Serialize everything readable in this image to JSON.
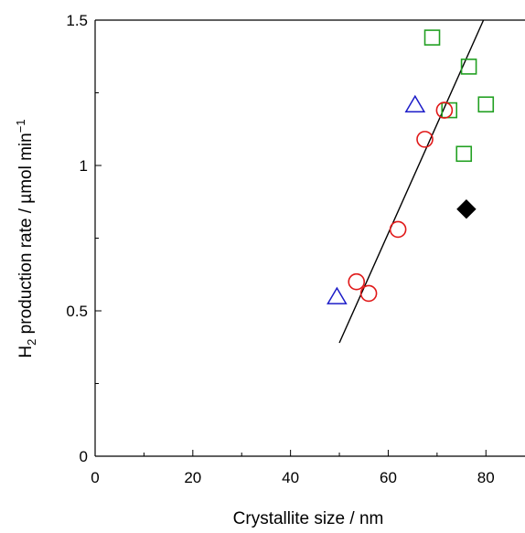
{
  "chart_data": {
    "type": "scatter",
    "title": "",
    "xlabel": "Crystallite size / nm",
    "ylabel": {
      "prefix": "H",
      "subscript": "2",
      "suffix": " production rate / µmol min",
      "superscript": "−1"
    },
    "xlim": [
      0,
      88
    ],
    "ylim": [
      0,
      1.5
    ],
    "x_ticks": [
      0,
      20,
      40,
      60,
      80
    ],
    "x_tick_labels": [
      "0",
      "20",
      "40",
      "60",
      "80"
    ],
    "x_minor_ticks": [
      10,
      30,
      50,
      70
    ],
    "y_ticks": [
      0,
      0.5,
      1,
      1.5
    ],
    "y_tick_labels": [
      "0",
      "0.5",
      "1",
      "1.5"
    ],
    "y_minor_ticks": [
      0.25,
      0.75,
      1.25
    ],
    "grid": false,
    "legend": null,
    "series": [
      {
        "marker": "square-open",
        "color": "#22a022",
        "points": [
          [
            69,
            1.44
          ],
          [
            76.5,
            1.34
          ],
          [
            72.5,
            1.19
          ],
          [
            80,
            1.21
          ],
          [
            75.5,
            1.04
          ]
        ]
      },
      {
        "marker": "triangle-open",
        "color": "#1c1cc8",
        "points": [
          [
            65.5,
            1.21
          ],
          [
            49.5,
            0.55
          ]
        ]
      },
      {
        "marker": "circle-open",
        "color": "#e01818",
        "points": [
          [
            71.5,
            1.19
          ],
          [
            67.5,
            1.09
          ],
          [
            62,
            0.78
          ],
          [
            53.5,
            0.6
          ],
          [
            56,
            0.56
          ]
        ]
      },
      {
        "marker": "diamond-filled",
        "color": "#000000",
        "points": [
          [
            76,
            0.85
          ]
        ]
      }
    ],
    "fit_line": {
      "color": "#000000",
      "points": [
        [
          50,
          0.39
        ],
        [
          79.5,
          1.5
        ]
      ]
    }
  }
}
